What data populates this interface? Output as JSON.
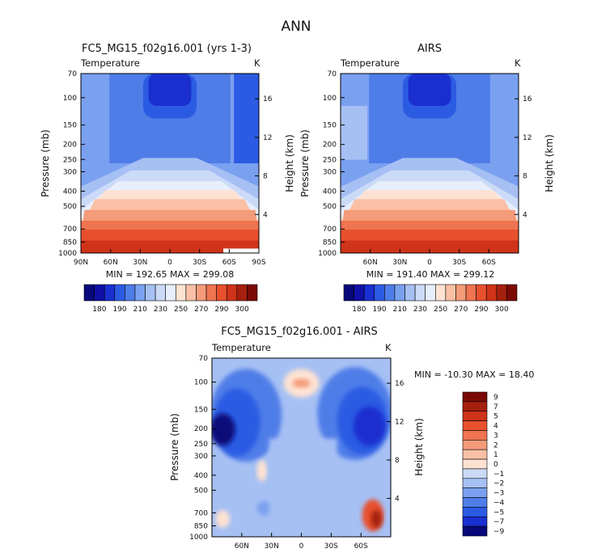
{
  "page_title": "ANN",
  "chart_data": [
    {
      "type": "heatmap",
      "title": "FC5_MG15_f02g16.001 (yrs 1-3)",
      "field_label": "Temperature",
      "units": "K",
      "ylabel": "Pressure (mb)",
      "right_ylabel": "Height (km)",
      "pressure_ticks": [
        "70",
        "100",
        "150",
        "200",
        "250",
        "300",
        "400",
        "500",
        "700",
        "850",
        "1000"
      ],
      "height_ticks": [
        "4",
        "8",
        "12",
        "16"
      ],
      "lat_ticks": [
        "90N",
        "60N",
        "30N",
        "0",
        "30S",
        "60S",
        "90S"
      ],
      "stats_text": "MIN = 192.65   MAX = 299.08",
      "min": 192.65,
      "max": 299.08,
      "colorbar_labels": [
        "180",
        "190",
        "210",
        "230",
        "250",
        "270",
        "290",
        "300"
      ]
    },
    {
      "type": "heatmap",
      "title": "AIRS",
      "field_label": "Temperature",
      "units": "K",
      "ylabel": "Pressure (mb)",
      "right_ylabel": "Height (km)",
      "pressure_ticks": [
        "70",
        "100",
        "150",
        "200",
        "250",
        "300",
        "400",
        "500",
        "700",
        "850",
        "1000"
      ],
      "height_ticks": [
        "4",
        "8",
        "12",
        "16"
      ],
      "lat_ticks": [
        "60N",
        "30N",
        "0",
        "30S",
        "60S"
      ],
      "stats_text": "MIN = 191.40   MAX = 299.12",
      "min": 191.4,
      "max": 299.12,
      "colorbar_labels": [
        "180",
        "190",
        "210",
        "230",
        "250",
        "270",
        "290",
        "300"
      ]
    },
    {
      "type": "heatmap",
      "title": "FC5_MG15_f02g16.001 - AIRS",
      "field_label": "Temperature",
      "units": "K",
      "ylabel": "Pressure (mb)",
      "right_ylabel": "Height (km)",
      "pressure_ticks": [
        "70",
        "100",
        "150",
        "200",
        "250",
        "300",
        "400",
        "500",
        "700",
        "850",
        "1000"
      ],
      "height_ticks": [
        "4",
        "8",
        "12",
        "16"
      ],
      "lat_ticks": [
        "60N",
        "30N",
        "0",
        "30S",
        "60S"
      ],
      "stats_text": "MIN = -10.30   MAX =  18.40",
      "min": -10.3,
      "max": 18.4,
      "colorbar_labels": [
        "9",
        "7",
        "5",
        "4",
        "3",
        "2",
        "1",
        "0",
        "-1",
        "-2",
        "-3",
        "-4",
        "-5",
        "-7",
        "-9"
      ]
    }
  ],
  "colors": {
    "temperature_scale": [
      "#08087a",
      "#1010a8",
      "#1a2fd0",
      "#2c5be3",
      "#4f7de8",
      "#7aa0f0",
      "#a6c0f4",
      "#cbdaf7",
      "#e7eefc",
      "#fde2d2",
      "#f9c0a5",
      "#f49b7a",
      "#ef7450",
      "#e8502d",
      "#cf3318",
      "#a5200f",
      "#7a0a06"
    ],
    "difference_scale": [
      "#7a0a06",
      "#a5200f",
      "#cf3318",
      "#e8502d",
      "#ef7450",
      "#f49b7a",
      "#f9c0a5",
      "#fde2d2",
      "#cbdaf7",
      "#a6c0f4",
      "#7aa0f0",
      "#4f7de8",
      "#2c5be3",
      "#1a2fd0",
      "#08087a"
    ]
  }
}
